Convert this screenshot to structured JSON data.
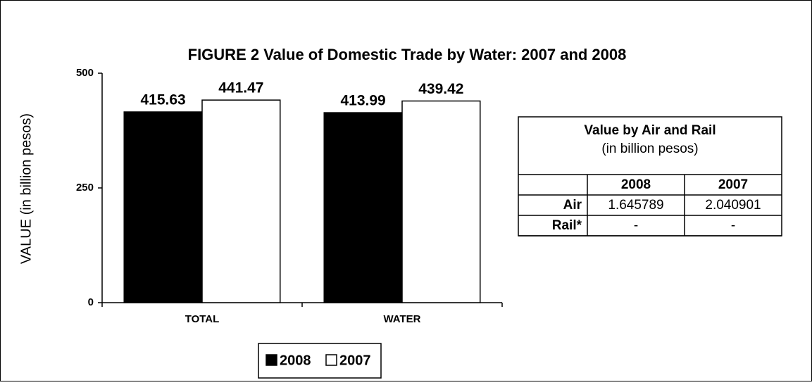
{
  "chart_data": {
    "type": "bar",
    "title": "FIGURE 2  Value of Domestic Trade by Water:  2007 and 2008",
    "ylabel": "VALUE (in billion pesos)",
    "categories": [
      "TOTAL",
      "WATER"
    ],
    "series": [
      {
        "name": "2008",
        "color": "#000000",
        "values": [
          415.63,
          413.99
        ]
      },
      {
        "name": "2007",
        "color": "#ffffff",
        "values": [
          441.47,
          439.42
        ]
      }
    ],
    "ylim": [
      0,
      500
    ],
    "yticks": [
      0,
      250,
      500
    ],
    "grid": false,
    "legend": "bottom"
  },
  "table": {
    "title": "Value by Air and Rail",
    "subtitle": "(in billion pesos)",
    "header": [
      "2008",
      "2007"
    ],
    "rows": [
      {
        "label": "Air",
        "values": [
          1.645789,
          2.040901
        ]
      },
      {
        "label": "Rail*",
        "values": [
          "-",
          "-"
        ]
      }
    ]
  }
}
